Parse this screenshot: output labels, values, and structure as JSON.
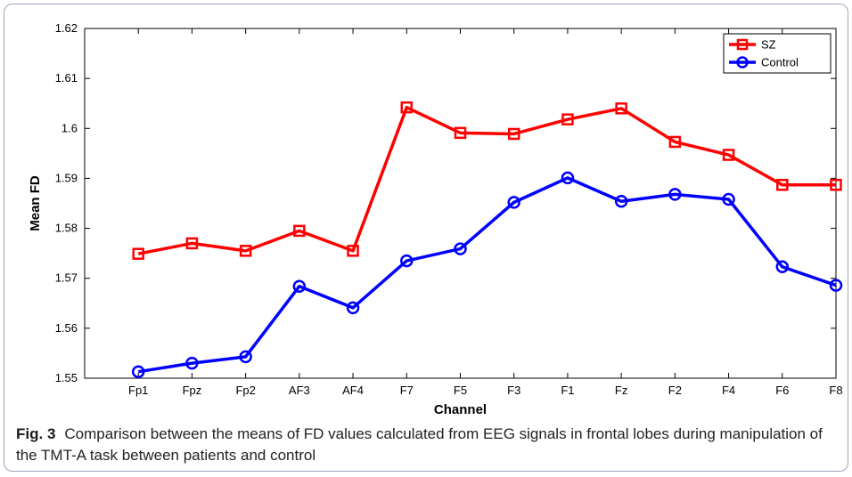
{
  "chart_data": {
    "type": "line",
    "title": "",
    "xlabel": "Channel",
    "ylabel": "Mean FD",
    "categories": [
      "Fp1",
      "Fpz",
      "Fp2",
      "AF3",
      "AF4",
      "F7",
      "F5",
      "F3",
      "F1",
      "Fz",
      "F2",
      "F4",
      "F6",
      "F8"
    ],
    "ylim": [
      1.55,
      1.62
    ],
    "yticks": [
      "1.55",
      "1.56",
      "1.57",
      "1.58",
      "1.59",
      "1.6",
      "1.61",
      "1.62"
    ],
    "grid": false,
    "legend_position": "top-right",
    "series": [
      {
        "name": "SZ",
        "color": "#ff0000",
        "marker": "square",
        "values": [
          1.5749,
          1.577,
          1.5755,
          1.5795,
          1.5755,
          1.6042,
          1.5991,
          1.5989,
          1.6018,
          1.604,
          1.5973,
          1.5947,
          1.5887,
          1.5887
        ]
      },
      {
        "name": "Control",
        "color": "#0000ff",
        "marker": "circle",
        "values": [
          1.5513,
          1.553,
          1.5543,
          1.5684,
          1.5641,
          1.5735,
          1.5759,
          1.5852,
          1.5901,
          1.5854,
          1.5868,
          1.5858,
          1.5723,
          1.5686
        ]
      }
    ]
  },
  "caption": {
    "label": "Fig. 3",
    "text": "Comparison between the means of FD values calculated from EEG signals in frontal lobes during manipulation of the TMT-A task between patients and control"
  }
}
